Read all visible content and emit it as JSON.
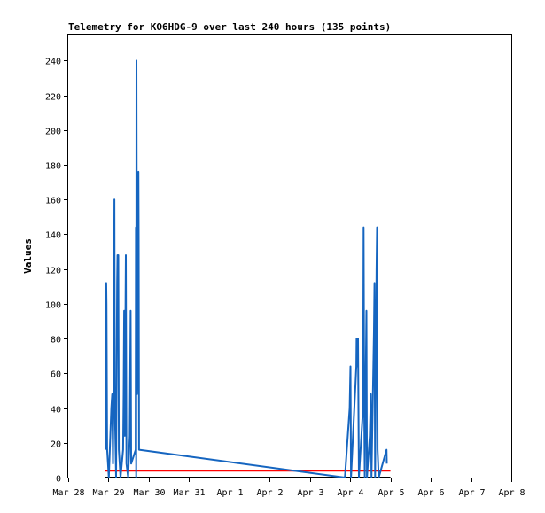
{
  "chart_data": {
    "type": "line",
    "title": "Telemetry for KO6HDG-9 over last 240 hours (135 points)",
    "ylabel": "Values",
    "xlabel": "",
    "ylim": [
      0,
      255
    ],
    "xlim_days": [
      "Mar 28",
      "Apr 8"
    ],
    "x_ticks": [
      "Mar 28",
      "Mar 29",
      "Mar 30",
      "Mar 31",
      "Apr 1",
      "Apr 2",
      "Apr 3",
      "Apr 4",
      "Apr 5",
      "Apr 6",
      "Apr 7",
      "Apr 8"
    ],
    "y_ticks": [
      0,
      20,
      40,
      60,
      80,
      100,
      120,
      140,
      160,
      180,
      200,
      220,
      240
    ],
    "grid": false,
    "colors": {
      "series_blue": "#1565c0",
      "series_red": "#ff0000",
      "series_black": "#000000"
    },
    "series": [
      {
        "color": "#1565c0",
        "points": [
          [
            "Mar 28 22:30",
            16
          ],
          [
            "Mar 28 22:40",
            112
          ],
          [
            "Mar 28 22:50",
            100
          ],
          [
            "Mar 28 23:10",
            16
          ],
          [
            "Mar 29 00:10",
            0
          ],
          [
            "Mar 29 01:40",
            40
          ],
          [
            "Mar 29 02:10",
            48
          ],
          [
            "Mar 29 02:40",
            8
          ],
          [
            "Mar 29 03:20",
            120
          ],
          [
            "Mar 29 03:30",
            160
          ],
          [
            "Mar 29 03:45",
            40
          ],
          [
            "Mar 29 04:30",
            0
          ],
          [
            "Mar 29 05:10",
            112
          ],
          [
            "Mar 29 05:20",
            128
          ],
          [
            "Mar 29 05:30",
            96
          ],
          [
            "Mar 29 05:50",
            128
          ],
          [
            "Mar 29 06:10",
            16
          ],
          [
            "Mar 29 07:10",
            0
          ],
          [
            "Mar 29 08:40",
            16
          ],
          [
            "Mar 29 09:00",
            48
          ],
          [
            "Mar 29 09:20",
            96
          ],
          [
            "Mar 29 09:40",
            24
          ],
          [
            "Mar 29 10:10",
            104
          ],
          [
            "Mar 29 10:20",
            128
          ],
          [
            "Mar 29 10:40",
            8
          ],
          [
            "Mar 29 11:40",
            0
          ],
          [
            "Mar 29 12:40",
            24
          ],
          [
            "Mar 29 13:10",
            96
          ],
          [
            "Mar 29 13:30",
            8
          ],
          [
            "Mar 29 16:10",
            16
          ],
          [
            "Mar 29 16:20",
            144
          ],
          [
            "Mar 29 16:30",
            0
          ],
          [
            "Mar 29 16:40",
            240
          ],
          [
            "Mar 29 16:50",
            160
          ],
          [
            "Mar 29 17:00",
            48
          ],
          [
            "Mar 29 17:30",
            80
          ],
          [
            "Mar 29 17:50",
            176
          ],
          [
            "Mar 29 18:00",
            136
          ],
          [
            "Mar 29 18:10",
            16
          ],
          [
            "Apr 3 20:50",
            0
          ],
          [
            "Apr 3 23:40",
            40
          ],
          [
            "Apr 4 00:10",
            64
          ],
          [
            "Apr 4 00:30",
            0
          ],
          [
            "Apr 4 03:40",
            64
          ],
          [
            "Apr 4 03:50",
            80
          ],
          [
            "Apr 4 04:20",
            64
          ],
          [
            "Apr 4 04:40",
            80
          ],
          [
            "Apr 4 05:10",
            0
          ],
          [
            "Apr 4 07:40",
            40
          ],
          [
            "Apr 4 08:00",
            144
          ],
          [
            "Apr 4 08:20",
            40
          ],
          [
            "Apr 4 08:40",
            0
          ],
          [
            "Apr 4 09:10",
            48
          ],
          [
            "Apr 4 09:40",
            96
          ],
          [
            "Apr 4 10:00",
            0
          ],
          [
            "Apr 4 11:40",
            24
          ],
          [
            "Apr 4 12:20",
            48
          ],
          [
            "Apr 4 12:40",
            0
          ],
          [
            "Apr 4 14:10",
            84
          ],
          [
            "Apr 4 14:30",
            112
          ],
          [
            "Apr 4 14:50",
            0
          ],
          [
            "Apr 4 15:40",
            120
          ],
          [
            "Apr 4 16:00",
            144
          ],
          [
            "Apr 4 16:20",
            16
          ],
          [
            "Apr 4 17:00",
            0
          ],
          [
            "Apr 4 21:40",
            16
          ],
          [
            "Apr 4 21:50",
            8
          ]
        ]
      },
      {
        "color": "#ff0000",
        "points": [
          [
            "Mar 28 22:00",
            4
          ],
          [
            "Apr 5 00:00",
            4
          ]
        ]
      },
      {
        "color": "#000000",
        "points": [
          [
            "Mar 28 22:00",
            0
          ],
          [
            "Apr 5 00:00",
            0
          ]
        ]
      }
    ]
  }
}
